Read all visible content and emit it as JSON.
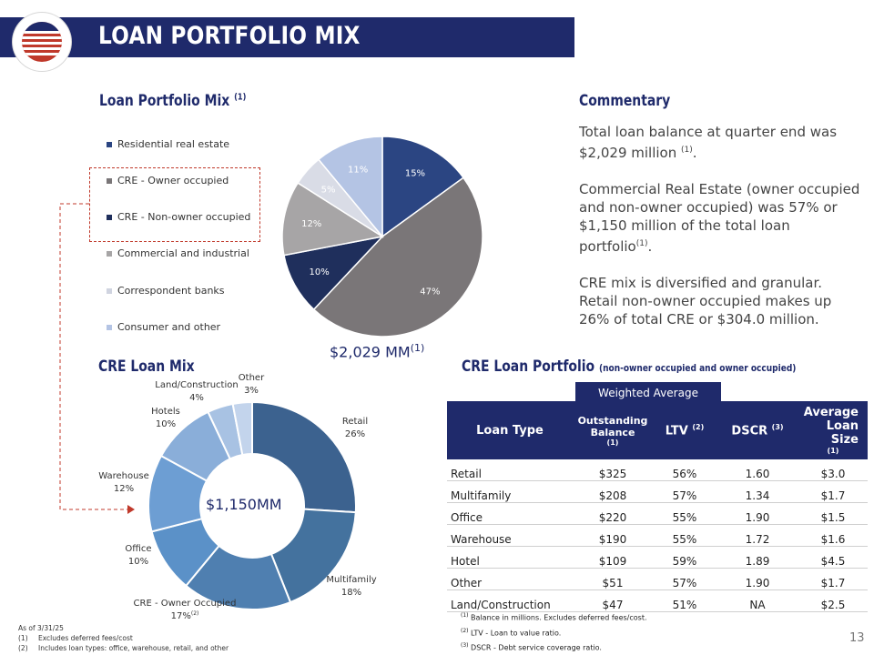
{
  "header": {
    "title": "LOAN PORTFOLIO MIX"
  },
  "loan_mix": {
    "title": "Loan Portfolio Mix",
    "title_note": "(1)",
    "total": "$2,029 MM",
    "total_note": "(1)",
    "legend": [
      {
        "label": "Residential real estate",
        "color": "#2b4582"
      },
      {
        "label": "CRE - Owner occupied",
        "color": "#7a7678"
      },
      {
        "label": "CRE - Non-owner occupied",
        "color": "#1f2f5c"
      },
      {
        "label": "Commercial and industrial",
        "color": "#a7a5a6"
      },
      {
        "label": "Correspondent banks",
        "color": "#d9dce6"
      },
      {
        "label": "Consumer and other",
        "color": "#b4c4e4"
      }
    ]
  },
  "commentary": {
    "title": "Commentary",
    "p1": "Total loan balance at quarter end was $2,029 million",
    "p1_note": "(1)",
    "p2": "Commercial Real Estate (owner occupied and non-owner occupied) was 57% or $1,150 million of the total loan portfolio",
    "p2_note": "(1)",
    "p3": "CRE mix is diversified and granular. Retail non-owner occupied makes up 26% of total CRE or $304.0 million."
  },
  "cre_mix": {
    "title": "CRE Loan Mix",
    "center": "$1,150MM"
  },
  "cre_portfolio": {
    "title": "CRE Loan Portfolio",
    "subtitle": "(non-owner occupied and owner occupied)",
    "weighted_avg": "Weighted Average",
    "headers": {
      "loan_type": "Loan Type",
      "outstanding": "Outstanding Balance",
      "outstanding_note": "(1)",
      "ltv": "LTV",
      "ltv_note": "(2)",
      "dscr": "DSCR",
      "dscr_note": "(3)",
      "avg": "Average Loan Size",
      "avg_note": "(1)"
    },
    "rows": [
      [
        "Retail",
        "$325",
        "56%",
        "1.60",
        "$3.0"
      ],
      [
        "Multifamily",
        "$208",
        "57%",
        "1.34",
        "$1.7"
      ],
      [
        "Office",
        "$220",
        "55%",
        "1.90",
        "$1.5"
      ],
      [
        "Warehouse",
        "$190",
        "55%",
        "1.72",
        "$1.6"
      ],
      [
        "Hotel",
        "$109",
        "59%",
        "1.89",
        "$4.5"
      ],
      [
        "Other",
        "$51",
        "57%",
        "1.90",
        "$1.7"
      ],
      [
        "Land/Construction",
        "$47",
        "51%",
        "NA",
        "$2.5"
      ]
    ]
  },
  "footnotes": {
    "f1": "Balance in millions. Excludes deferred fees/cost.",
    "f1_mark": "(1)",
    "f2": "LTV - Loan to value ratio.",
    "f2_mark": "(2)",
    "f3": "DSCR - Debt service coverage ratio.",
    "f3_mark": "(3)"
  },
  "asof": {
    "date": "As of 3/31/25",
    "n1": "(1)",
    "t1": "Excludes deferred fees/cost",
    "n2": "(2)",
    "t2": "Includes loan types: office, warehouse, retail, and other"
  },
  "page_number": "13",
  "chart_data": [
    {
      "type": "pie",
      "title": "Loan Portfolio Mix",
      "categories": [
        "Residential real estate",
        "CRE - Owner occupied",
        "CRE - Non-owner occupied",
        "Commercial and industrial",
        "Correspondent banks",
        "Consumer and other"
      ],
      "values": [
        15,
        47,
        10,
        12,
        5,
        11
      ],
      "labels": [
        "15%",
        "47%",
        "10%",
        "12%",
        "5%",
        "11%"
      ],
      "colors": [
        "#2b4582",
        "#7a7678",
        "#1f2f5c",
        "#a7a5a6",
        "#d9dce6",
        "#b4c4e4"
      ],
      "label_colors": [
        "#ffffff",
        "#ffffff",
        "#ffffff",
        "#ffffff",
        "#ffffff",
        "#ffffff"
      ],
      "legend": "left"
    },
    {
      "type": "pie",
      "title": "CRE Loan Mix",
      "categories": [
        "Retail",
        "Multifamily",
        "CRE - Owner Occupied",
        "Office",
        "Warehouse",
        "Hotels",
        "Land/Construction",
        "Other"
      ],
      "values": [
        26,
        18,
        17,
        10,
        12,
        10,
        4,
        3
      ],
      "labels": [
        "26%",
        "18%",
        "17%",
        "10%",
        "12%",
        "10%",
        "4%",
        "3%"
      ],
      "label_notes": [
        "",
        "",
        "(2)",
        "",
        "",
        "",
        "",
        ""
      ],
      "colors": [
        "#3c628f",
        "#44729e",
        "#4f7fb0",
        "#5b91c8",
        "#6d9ed3",
        "#8aaed9",
        "#a8c2e3",
        "#c3d4ec"
      ],
      "center_label": "$1,150MM"
    }
  ]
}
